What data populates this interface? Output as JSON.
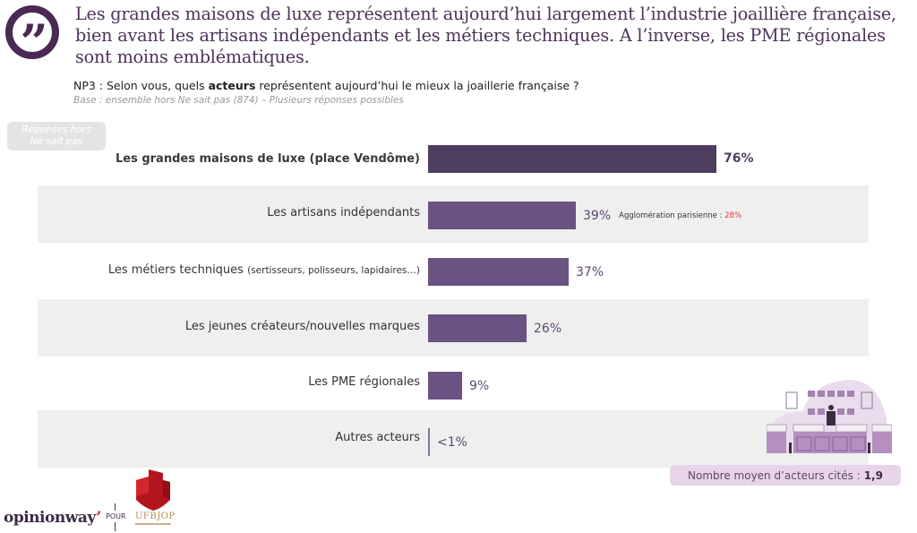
{
  "header": {
    "quote_icon": "quote-icon",
    "headline": "Les grandes maisons de luxe représentent aujourd’hui largement l’industrie joaillière française, bien avant les artisans indépendants et les métiers techniques. A l’inverse, les PME régionales sont moins emblématiques.",
    "question_prefix": "NP3 : Selon vous, quels ",
    "question_bold": "acteurs",
    "question_suffix": " représentent aujourd’hui le mieux la joaillerie française ?",
    "base": "Base : ensemble hors Ne sait pas (874) – Plusieurs réponses possibles"
  },
  "badge": {
    "line1": "Réponses hors",
    "line2": "Ne sait pas"
  },
  "chart_data": {
    "type": "bar",
    "orientation": "horizontal",
    "title": "NP3 : Selon vous, quels acteurs représentent aujourd’hui le mieux la joaillerie française ?",
    "xlabel": "",
    "ylabel": "",
    "xlim": [
      0,
      100
    ],
    "grid": false,
    "categories": [
      "Les grandes maisons de luxe (place Vendôme)",
      "Les artisans indépendants",
      "Les métiers techniques",
      "Les jeunes créateurs/nouvelles marques",
      "Les PME régionales",
      "Autres acteurs"
    ],
    "category_subtext": [
      "",
      "",
      "(sertisseurs, polisseurs, lapidaires…)",
      "",
      "",
      ""
    ],
    "values": [
      76,
      39,
      37,
      26,
      9,
      0.5
    ],
    "value_labels": [
      "76%",
      "39%",
      "37%",
      "26%",
      "9%",
      "<1%"
    ],
    "annotation": {
      "label": "Agglomération parisienne : ",
      "value": "28%",
      "value_color": "#e03a3a"
    },
    "colors": {
      "top_bar": "#4f3e60",
      "bar": "#6a5282"
    }
  },
  "summary": {
    "label": "Nombre moyen d’acteurs cités : ",
    "value": "1,9"
  },
  "footer": {
    "brand": "opinionway",
    "pour": "POUR",
    "partner": "UFBJOP"
  }
}
